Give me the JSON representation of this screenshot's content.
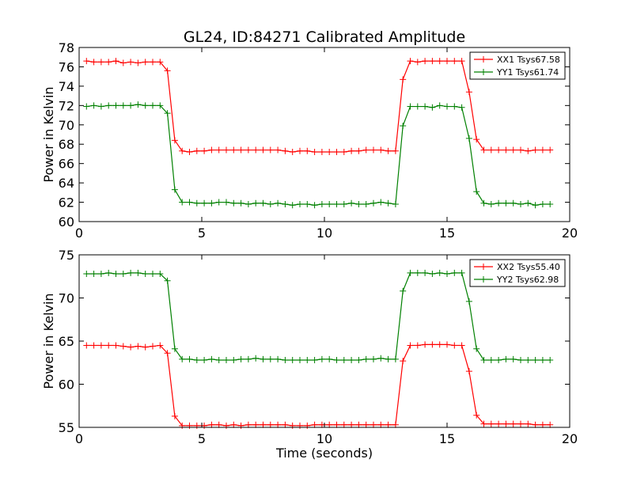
{
  "figure": {
    "title": "GL24, ID:84271 Calibrated Amplitude"
  },
  "chart_data": [
    {
      "type": "line",
      "title": "GL24, ID:84271 Calibrated Amplitude",
      "xlabel": "",
      "ylabel": "Power in Kelvin",
      "xlim": [
        0,
        20
      ],
      "ylim": [
        60,
        78
      ],
      "xticks": [
        0,
        5,
        10,
        15,
        20
      ],
      "yticks": [
        60,
        62,
        64,
        66,
        68,
        70,
        72,
        74,
        76,
        78
      ],
      "grid": false,
      "legend": "top-right",
      "series": [
        {
          "name": "XX1 Tsys67.58",
          "color": "#ff0000",
          "marker": "plus",
          "x": [
            0.3,
            0.6,
            0.9,
            1.2,
            1.5,
            1.8,
            2.1,
            2.4,
            2.7,
            3.0,
            3.3,
            3.6,
            3.9,
            4.2,
            4.5,
            4.8,
            5.1,
            5.4,
            5.7,
            6.0,
            6.3,
            6.6,
            6.9,
            7.2,
            7.5,
            7.8,
            8.1,
            8.4,
            8.7,
            9.0,
            9.3,
            9.6,
            9.9,
            10.2,
            10.5,
            10.8,
            11.1,
            11.4,
            11.7,
            12.0,
            12.3,
            12.6,
            12.9,
            13.2,
            13.5,
            13.8,
            14.1,
            14.4,
            14.7,
            15.0,
            15.3,
            15.6,
            15.9,
            16.2,
            16.5,
            16.8,
            17.1,
            17.4,
            17.7,
            18.0,
            18.3,
            18.6,
            18.9,
            19.2
          ],
          "y": [
            76.6,
            76.5,
            76.5,
            76.5,
            76.6,
            76.4,
            76.5,
            76.4,
            76.5,
            76.5,
            76.5,
            75.6,
            68.4,
            67.3,
            67.2,
            67.3,
            67.3,
            67.4,
            67.4,
            67.4,
            67.4,
            67.4,
            67.4,
            67.4,
            67.4,
            67.4,
            67.4,
            67.3,
            67.2,
            67.3,
            67.3,
            67.2,
            67.2,
            67.2,
            67.2,
            67.2,
            67.3,
            67.3,
            67.4,
            67.4,
            67.4,
            67.3,
            67.3,
            74.7,
            76.6,
            76.5,
            76.6,
            76.6,
            76.6,
            76.6,
            76.6,
            76.6,
            73.4,
            68.5,
            67.4,
            67.4,
            67.4,
            67.4,
            67.4,
            67.4,
            67.3,
            67.4,
            67.4,
            67.4
          ]
        },
        {
          "name": "YY1 Tsys61.74",
          "color": "#008000",
          "marker": "plus",
          "x": [
            0.3,
            0.6,
            0.9,
            1.2,
            1.5,
            1.8,
            2.1,
            2.4,
            2.7,
            3.0,
            3.3,
            3.6,
            3.9,
            4.2,
            4.5,
            4.8,
            5.1,
            5.4,
            5.7,
            6.0,
            6.3,
            6.6,
            6.9,
            7.2,
            7.5,
            7.8,
            8.1,
            8.4,
            8.7,
            9.0,
            9.3,
            9.6,
            9.9,
            10.2,
            10.5,
            10.8,
            11.1,
            11.4,
            11.7,
            12.0,
            12.3,
            12.6,
            12.9,
            13.2,
            13.5,
            13.8,
            14.1,
            14.4,
            14.7,
            15.0,
            15.3,
            15.6,
            15.9,
            16.2,
            16.5,
            16.8,
            17.1,
            17.4,
            17.7,
            18.0,
            18.3,
            18.6,
            18.9,
            19.2
          ],
          "y": [
            71.9,
            72.0,
            71.9,
            72.0,
            72.0,
            72.0,
            72.0,
            72.1,
            72.0,
            72.0,
            72.0,
            71.2,
            63.3,
            62.0,
            62.0,
            61.9,
            61.9,
            61.9,
            62.0,
            62.0,
            61.9,
            61.9,
            61.8,
            61.9,
            61.9,
            61.8,
            61.9,
            61.8,
            61.7,
            61.8,
            61.8,
            61.7,
            61.8,
            61.8,
            61.8,
            61.8,
            61.9,
            61.8,
            61.8,
            61.9,
            62.0,
            61.9,
            61.8,
            69.9,
            71.9,
            71.9,
            71.9,
            71.8,
            72.0,
            71.9,
            71.9,
            71.8,
            68.6,
            63.1,
            61.9,
            61.8,
            61.9,
            61.9,
            61.9,
            61.8,
            61.9,
            61.7,
            61.8,
            61.8
          ]
        }
      ]
    },
    {
      "type": "line",
      "title": "",
      "xlabel": "Time (seconds)",
      "ylabel": "Power in Kelvin",
      "xlim": [
        0,
        20
      ],
      "ylim": [
        55,
        75
      ],
      "xticks": [
        0,
        5,
        10,
        15,
        20
      ],
      "yticks": [
        55,
        60,
        65,
        70,
        75
      ],
      "grid": false,
      "legend": "top-right",
      "series": [
        {
          "name": "XX2 Tsys55.40",
          "color": "#ff0000",
          "marker": "plus",
          "x": [
            0.3,
            0.6,
            0.9,
            1.2,
            1.5,
            1.8,
            2.1,
            2.4,
            2.7,
            3.0,
            3.3,
            3.6,
            3.9,
            4.2,
            4.5,
            4.8,
            5.1,
            5.4,
            5.7,
            6.0,
            6.3,
            6.6,
            6.9,
            7.2,
            7.5,
            7.8,
            8.1,
            8.4,
            8.7,
            9.0,
            9.3,
            9.6,
            9.9,
            10.2,
            10.5,
            10.8,
            11.1,
            11.4,
            11.7,
            12.0,
            12.3,
            12.6,
            12.9,
            13.2,
            13.5,
            13.8,
            14.1,
            14.4,
            14.7,
            15.0,
            15.3,
            15.6,
            15.9,
            16.2,
            16.5,
            16.8,
            17.1,
            17.4,
            17.7,
            18.0,
            18.3,
            18.6,
            18.9,
            19.2
          ],
          "y": [
            64.5,
            64.5,
            64.5,
            64.5,
            64.5,
            64.4,
            64.3,
            64.4,
            64.3,
            64.4,
            64.5,
            63.6,
            56.3,
            55.2,
            55.2,
            55.2,
            55.2,
            55.3,
            55.3,
            55.2,
            55.3,
            55.2,
            55.3,
            55.3,
            55.3,
            55.3,
            55.3,
            55.3,
            55.2,
            55.2,
            55.2,
            55.3,
            55.3,
            55.3,
            55.3,
            55.3,
            55.3,
            55.3,
            55.3,
            55.3,
            55.3,
            55.3,
            55.3,
            62.7,
            64.5,
            64.5,
            64.6,
            64.6,
            64.6,
            64.6,
            64.5,
            64.5,
            61.5,
            56.4,
            55.4,
            55.4,
            55.4,
            55.4,
            55.4,
            55.4,
            55.4,
            55.3,
            55.3,
            55.3
          ]
        },
        {
          "name": "YY2 Tsys62.98",
          "color": "#008000",
          "marker": "plus",
          "x": [
            0.3,
            0.6,
            0.9,
            1.2,
            1.5,
            1.8,
            2.1,
            2.4,
            2.7,
            3.0,
            3.3,
            3.6,
            3.9,
            4.2,
            4.5,
            4.8,
            5.1,
            5.4,
            5.7,
            6.0,
            6.3,
            6.6,
            6.9,
            7.2,
            7.5,
            7.8,
            8.1,
            8.4,
            8.7,
            9.0,
            9.3,
            9.6,
            9.9,
            10.2,
            10.5,
            10.8,
            11.1,
            11.4,
            11.7,
            12.0,
            12.3,
            12.6,
            12.9,
            13.2,
            13.5,
            13.8,
            14.1,
            14.4,
            14.7,
            15.0,
            15.3,
            15.6,
            15.9,
            16.2,
            16.5,
            16.8,
            17.1,
            17.4,
            17.7,
            18.0,
            18.3,
            18.6,
            18.9,
            19.2
          ],
          "y": [
            72.8,
            72.8,
            72.8,
            72.9,
            72.8,
            72.8,
            72.9,
            72.9,
            72.8,
            72.8,
            72.8,
            72.0,
            64.1,
            62.9,
            62.9,
            62.8,
            62.8,
            62.9,
            62.8,
            62.8,
            62.8,
            62.9,
            62.9,
            63.0,
            62.9,
            62.9,
            62.9,
            62.8,
            62.8,
            62.8,
            62.8,
            62.8,
            62.9,
            62.9,
            62.8,
            62.8,
            62.8,
            62.8,
            62.9,
            62.9,
            63.0,
            62.9,
            62.9,
            70.8,
            72.9,
            72.9,
            72.9,
            72.8,
            72.9,
            72.8,
            72.9,
            72.9,
            69.6,
            64.1,
            62.8,
            62.8,
            62.8,
            62.9,
            62.9,
            62.8,
            62.8,
            62.8,
            62.8,
            62.8
          ]
        }
      ]
    }
  ]
}
